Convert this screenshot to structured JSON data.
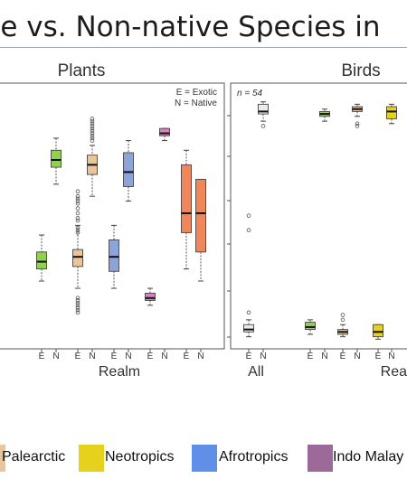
{
  "slide": {
    "title": "ve vs. Non-native Species in"
  },
  "colors": {
    "all": "#ececec",
    "palearctic": "#e9c79b",
    "neotropics": "#e6d21c",
    "afrotropics": "#5f8fe6",
    "indo_malay": "#9b6a98",
    "green": "#92d050",
    "blue_box": "#8ea3d8",
    "pink": "#e27dc0",
    "orange": "#f0875a"
  },
  "legend": [
    {
      "label": "Palearctic",
      "color_key": "palearctic"
    },
    {
      "label": "Neotropics",
      "color_key": "neotropics"
    },
    {
      "label": "Afrotropics",
      "color_key": "afrotropics"
    },
    {
      "label": "Indo Malay",
      "color_key": "indo_malay"
    }
  ],
  "chart_data": [
    {
      "type": "box",
      "title": "Plants",
      "xlabel": "Realm",
      "ylabel": "",
      "annotation": [
        "E = Exotic",
        "N = Native"
      ],
      "tick_labels": [
        "E",
        "N",
        "E",
        "N",
        "E",
        "N",
        "E",
        "N",
        "E",
        "N"
      ],
      "y_range": [
        0,
        1
      ],
      "boxes": [
        {
          "group": "E",
          "color_key": "green",
          "q1": 0.3,
          "median": 0.33,
          "q3": 0.37,
          "whisker_low": 0.25,
          "whisker_high": 0.44,
          "outliers": []
        },
        {
          "group": "N",
          "color_key": "green",
          "q1": 0.72,
          "median": 0.75,
          "q3": 0.79,
          "whisker_low": 0.65,
          "whisker_high": 0.84,
          "outliers": []
        },
        {
          "group": "E",
          "color_key": "palearctic",
          "q1": 0.31,
          "median": 0.35,
          "q3": 0.38,
          "whisker_low": 0.22,
          "whisker_high": 0.48,
          "outliers": [
            0.12,
            0.13,
            0.14,
            0.15,
            0.16,
            0.17,
            0.18,
            0.45,
            0.46,
            0.47,
            0.5,
            0.51,
            0.53,
            0.55,
            0.57,
            0.58,
            0.59,
            0.6,
            0.62
          ]
        },
        {
          "group": "N",
          "color_key": "palearctic",
          "q1": 0.69,
          "median": 0.73,
          "q3": 0.77,
          "whisker_low": 0.6,
          "whisker_high": 0.81,
          "outliers": [
            0.83,
            0.84,
            0.85,
            0.86,
            0.87,
            0.88,
            0.89,
            0.9,
            0.91,
            0.92
          ]
        },
        {
          "group": "E",
          "color_key": "blue_box",
          "q1": 0.29,
          "median": 0.35,
          "q3": 0.42,
          "whisker_low": 0.22,
          "whisker_high": 0.48,
          "outliers": []
        },
        {
          "group": "N",
          "color_key": "blue_box",
          "q1": 0.64,
          "median": 0.7,
          "q3": 0.78,
          "whisker_low": 0.58,
          "whisker_high": 0.83,
          "outliers": []
        },
        {
          "group": "E",
          "color_key": "pink",
          "q1": 0.17,
          "median": 0.18,
          "q3": 0.2,
          "whisker_low": 0.15,
          "whisker_high": 0.22,
          "outliers": []
        },
        {
          "group": "N",
          "color_key": "pink",
          "q1": 0.85,
          "median": 0.86,
          "q3": 0.88,
          "whisker_low": 0.83,
          "whisker_high": 0.88,
          "outliers": []
        },
        {
          "group": "E",
          "color_key": "orange",
          "q1": 0.45,
          "median": 0.53,
          "q3": 0.73,
          "whisker_low": 0.3,
          "whisker_high": 0.79,
          "outliers": []
        },
        {
          "group": "N",
          "color_key": "orange",
          "q1": 0.37,
          "median": 0.53,
          "q3": 0.67,
          "whisker_low": 0.25,
          "whisker_high": 0.67,
          "outliers": []
        }
      ]
    },
    {
      "type": "box",
      "title": "Birds",
      "xlabel": "Rea",
      "group_label": "All",
      "annotation": [
        "n = 54"
      ],
      "tick_labels": [
        "E",
        "N",
        "E",
        "N",
        "E",
        "N",
        "E",
        "N"
      ],
      "y_range": [
        0,
        1
      ],
      "boxes": [
        {
          "group": "E",
          "color_key": "all",
          "q1": 0.04,
          "median": 0.05,
          "q3": 0.07,
          "whisker_low": 0.02,
          "whisker_high": 0.09,
          "outliers": [
            0.12,
            0.46,
            0.52
          ]
        },
        {
          "group": "N",
          "color_key": "all",
          "q1": 0.94,
          "median": 0.95,
          "q3": 0.98,
          "whisker_low": 0.91,
          "whisker_high": 0.99,
          "outliers": [
            0.89
          ]
        },
        {
          "group": "E",
          "color_key": "green",
          "q1": 0.05,
          "median": 0.06,
          "q3": 0.08,
          "whisker_low": 0.03,
          "whisker_high": 0.09,
          "outliers": []
        },
        {
          "group": "N",
          "color_key": "green",
          "q1": 0.93,
          "median": 0.94,
          "q3": 0.95,
          "whisker_low": 0.91,
          "whisker_high": 0.96,
          "outliers": []
        },
        {
          "group": "E",
          "color_key": "palearctic",
          "q1": 0.03,
          "median": 0.04,
          "q3": 0.05,
          "whisker_low": 0.02,
          "whisker_high": 0.07,
          "outliers": [
            0.09,
            0.11
          ]
        },
        {
          "group": "N",
          "color_key": "palearctic",
          "q1": 0.95,
          "median": 0.96,
          "q3": 0.97,
          "whisker_low": 0.93,
          "whisker_high": 0.98,
          "outliers": [
            0.89,
            0.9
          ]
        },
        {
          "group": "E",
          "color_key": "neotropics",
          "q1": 0.02,
          "median": 0.04,
          "q3": 0.07,
          "whisker_low": 0.01,
          "whisker_high": 0.07,
          "outliers": []
        },
        {
          "group": "N",
          "color_key": "neotropics",
          "q1": 0.92,
          "median": 0.95,
          "q3": 0.97,
          "whisker_low": 0.9,
          "whisker_high": 0.98,
          "outliers": []
        }
      ]
    }
  ]
}
